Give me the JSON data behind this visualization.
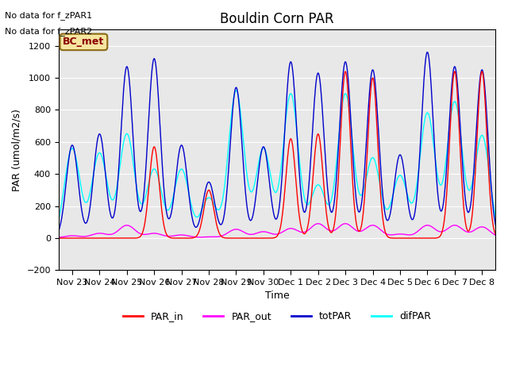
{
  "title": "Bouldin Corn PAR",
  "ylabel": "PAR (umol/m2/s)",
  "xlabel": "Time",
  "text_no_data": [
    "No data for f_zPAR1",
    "No data for f_zPAR2"
  ],
  "legend_label_text": "BC_met",
  "ylim": [
    -200,
    1300
  ],
  "yticks": [
    -200,
    0,
    200,
    400,
    600,
    800,
    1000,
    1200
  ],
  "x_tick_labels": [
    "Nov 23",
    "Nov 24",
    "Nov 25",
    "Nov 26",
    "Nov 27",
    "Nov 28",
    "Nov 29",
    "Nov 30",
    "Dec 1",
    "Dec 2",
    "Dec 3",
    "Dec 4",
    "Dec 5",
    "Dec 6",
    "Dec 7",
    "Dec 8"
  ],
  "n_days": 16,
  "colors": {
    "PAR_in": "#ff0000",
    "PAR_out": "#ff00ff",
    "totPAR": "#0000cc",
    "difPAR": "#00ffff"
  },
  "bg_color": "#e8e8e8",
  "legend_box_color": "#f5e6a0",
  "legend_box_edge": "#8b6914",
  "totpar_peaks": [
    580,
    650,
    1070,
    1120,
    580,
    350,
    940,
    570,
    1100,
    1030,
    1100,
    1050,
    520,
    1160,
    1070,
    1050
  ],
  "difpar_peaks": [
    560,
    530,
    650,
    430,
    430,
    250,
    920,
    560,
    900,
    330,
    900,
    500,
    390,
    780,
    850,
    640
  ],
  "par_out_peaks": [
    15,
    30,
    80,
    30,
    20,
    8,
    55,
    40,
    60,
    90,
    90,
    80,
    25,
    80,
    80,
    70
  ],
  "par_in_peaks": [
    0,
    0,
    0,
    570,
    0,
    300,
    0,
    0,
    620,
    650,
    1040,
    1000,
    0,
    0,
    1040,
    1040
  ]
}
